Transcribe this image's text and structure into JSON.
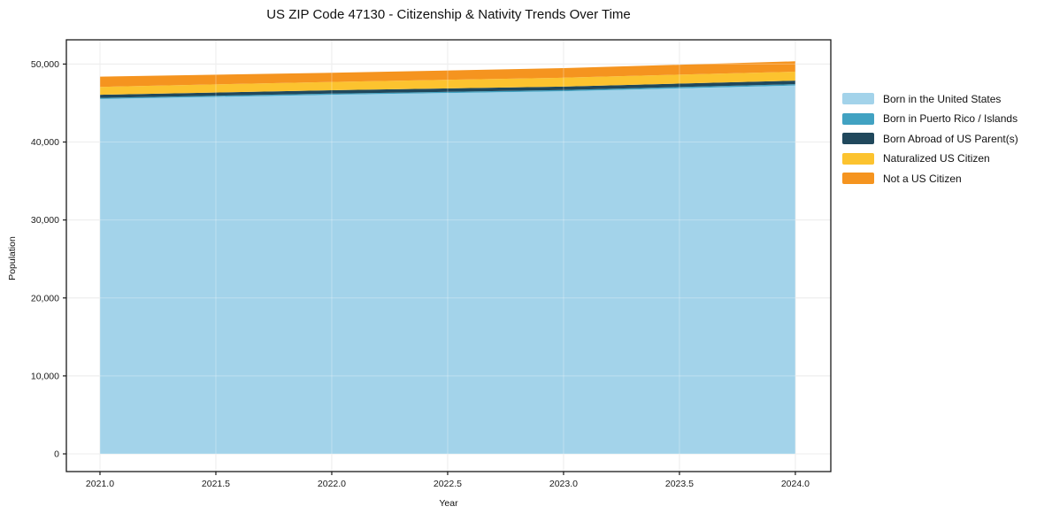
{
  "chart_data": {
    "type": "area",
    "stacked": true,
    "title": "US ZIP Code 47130 - Citizenship & Nativity Trends Over Time",
    "xlabel": "Year",
    "ylabel": "Population",
    "x": [
      2021,
      2022,
      2023,
      2024
    ],
    "series": [
      {
        "name": "Born in the United States",
        "color": "#A3D3EA",
        "values": [
          45520,
          46060,
          46520,
          47250
        ]
      },
      {
        "name": "Born in Puerto Rico / Islands",
        "color": "#41A2C2",
        "values": [
          140,
          150,
          160,
          180
        ]
      },
      {
        "name": "Born Abroad of US Parent(s)",
        "color": "#20485C",
        "values": [
          400,
          430,
          430,
          450
        ]
      },
      {
        "name": "Naturalized US Citizen",
        "color": "#FCC32F",
        "values": [
          1010,
          1070,
          1140,
          1140
        ]
      },
      {
        "name": "Not a US Citizen",
        "color": "#F5941F",
        "values": [
          1315,
          1170,
          1230,
          1330
        ]
      }
    ],
    "totals": [
      48385,
      48880,
      49480,
      50350
    ],
    "xlim": [
      2020.855,
      2024.153
    ],
    "ylim": [
      -2270,
      53110
    ],
    "x_ticks": {
      "values": [
        2021.0,
        2021.5,
        2022.0,
        2022.5,
        2023.0,
        2023.5,
        2024.0
      ],
      "labels": [
        "2021.0",
        "2021.5",
        "2022.0",
        "2022.5",
        "2023.0",
        "2023.5",
        "2024.0"
      ]
    },
    "y_ticks": {
      "values": [
        0,
        10000,
        20000,
        30000,
        40000,
        50000
      ],
      "labels": [
        "0",
        "10,000",
        "20,000",
        "30,000",
        "40,000",
        "50,000"
      ]
    },
    "grid": true,
    "legend_position": "right",
    "frame_color": "#1a1a1a",
    "grid_color": "#e4e4e4",
    "tick_label_color": "#1a1a1a"
  }
}
